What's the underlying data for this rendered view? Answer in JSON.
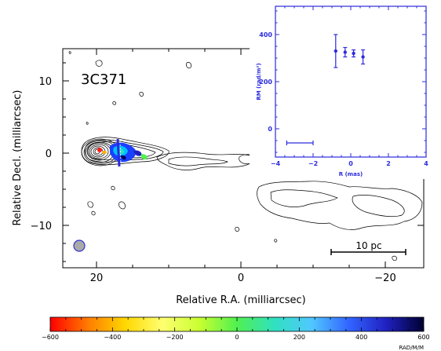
{
  "chart_data": [
    {
      "type": "contour_map",
      "source_label": "3C371",
      "xlabel": "Relative R.A. (milliarcsec)",
      "ylabel": "Relative Decl. (milliarcsec)",
      "xlim": [
        25,
        -25
      ],
      "ylim": [
        -16,
        14.5
      ],
      "xticks": [
        20,
        0,
        -20
      ],
      "xtick_labels": [
        "20",
        "0",
        "−20"
      ],
      "yticks": [
        10,
        0,
        -10
      ],
      "ytick_labels": [
        "10",
        "0",
        "−10"
      ],
      "scale_bar_label": "10 pc",
      "beam": {
        "x": 23,
        "y": -13
      }
    },
    {
      "type": "scatter",
      "xlabel": "R (mas)",
      "ylabel": "RM (rad/m²)",
      "xlim": [
        -4,
        4
      ],
      "ylim": [
        -120,
        520
      ],
      "xticks": [
        -4,
        -2,
        0,
        2,
        4
      ],
      "xtick_labels": [
        "−4",
        "−2",
        "0",
        "2",
        "4"
      ],
      "yticks": [
        0,
        200,
        400
      ],
      "ytick_labels": [
        "0",
        "200",
        "400"
      ],
      "series": [
        {
          "x": [
            -0.8,
            -0.3,
            0.15,
            0.65
          ],
          "y": [
            330,
            325,
            320,
            305
          ],
          "yerr": [
            70,
            20,
            15,
            30
          ]
        }
      ],
      "hbar": {
        "x0": -3.4,
        "x1": -2.0,
        "y": -60
      },
      "color": "#2b2bdd"
    },
    {
      "type": "colorbar",
      "ticks": [
        -600,
        -400,
        -200,
        0,
        200,
        400,
        600
      ],
      "tick_labels": [
        "−600",
        "−400",
        "−200",
        "0",
        "200",
        "400",
        "600"
      ],
      "unit_label": "RAD/M/M",
      "stops": [
        "#ff0000",
        "#ff7a00",
        "#ffd700",
        "#ffff70",
        "#c8ff30",
        "#50f050",
        "#30e0c0",
        "#50c8ff",
        "#3264ff",
        "#2020c0",
        "#000030"
      ]
    }
  ]
}
